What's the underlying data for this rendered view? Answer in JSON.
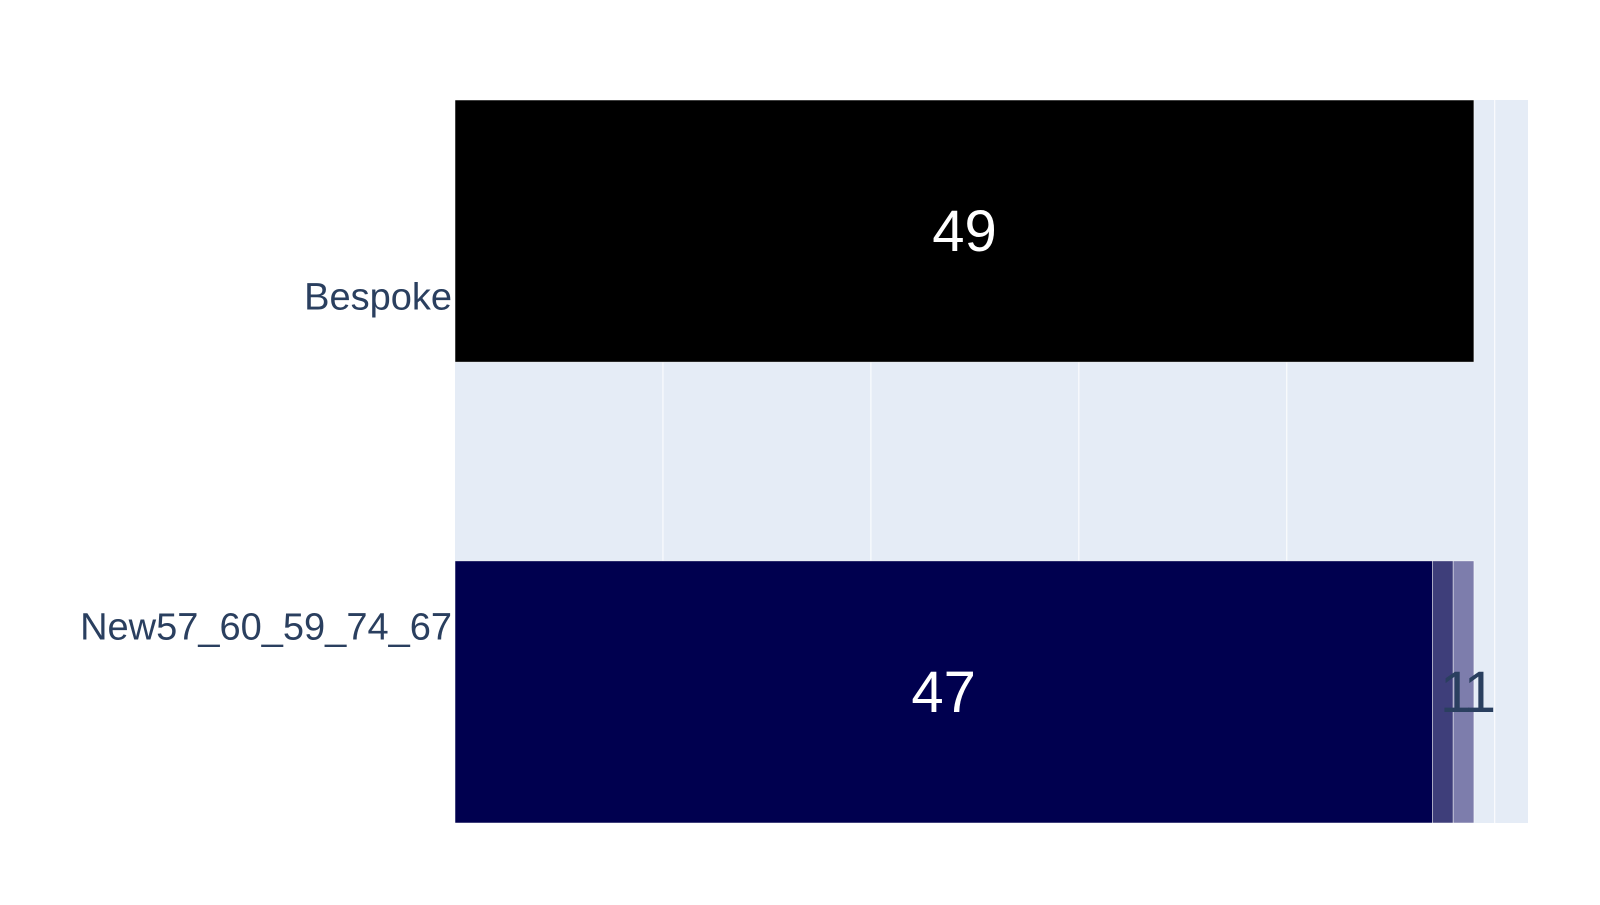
{
  "chart_data": {
    "type": "bar",
    "orientation": "horizontal",
    "barmode": "stack",
    "categories": [
      "Bespoke",
      "New57_60_59_74_67"
    ],
    "series": [
      {
        "color": "#000000",
        "values": [
          49,
          null
        ],
        "labels": [
          "49",
          ""
        ],
        "label_color": "#ffffff"
      },
      {
        "color": "#00004f",
        "values": [
          null,
          47
        ],
        "labels": [
          "",
          "47"
        ],
        "label_color": "#ffffff"
      },
      {
        "color": "#3e3e7a",
        "values": [
          null,
          1
        ],
        "labels": [
          "",
          "1"
        ],
        "label_color": "#2a3f5f"
      },
      {
        "color": "#7d7dac",
        "values": [
          null,
          1
        ],
        "labels": [
          "",
          "1"
        ],
        "label_color": "#2a3f5f"
      }
    ],
    "xlim": [
      0,
      51.6
    ],
    "grid": true,
    "tick_labels_shown": false,
    "colors": {
      "plot_background": "#e5ecf6",
      "gridline": "#ffffff",
      "axis_text": "#2a3f5f"
    }
  }
}
